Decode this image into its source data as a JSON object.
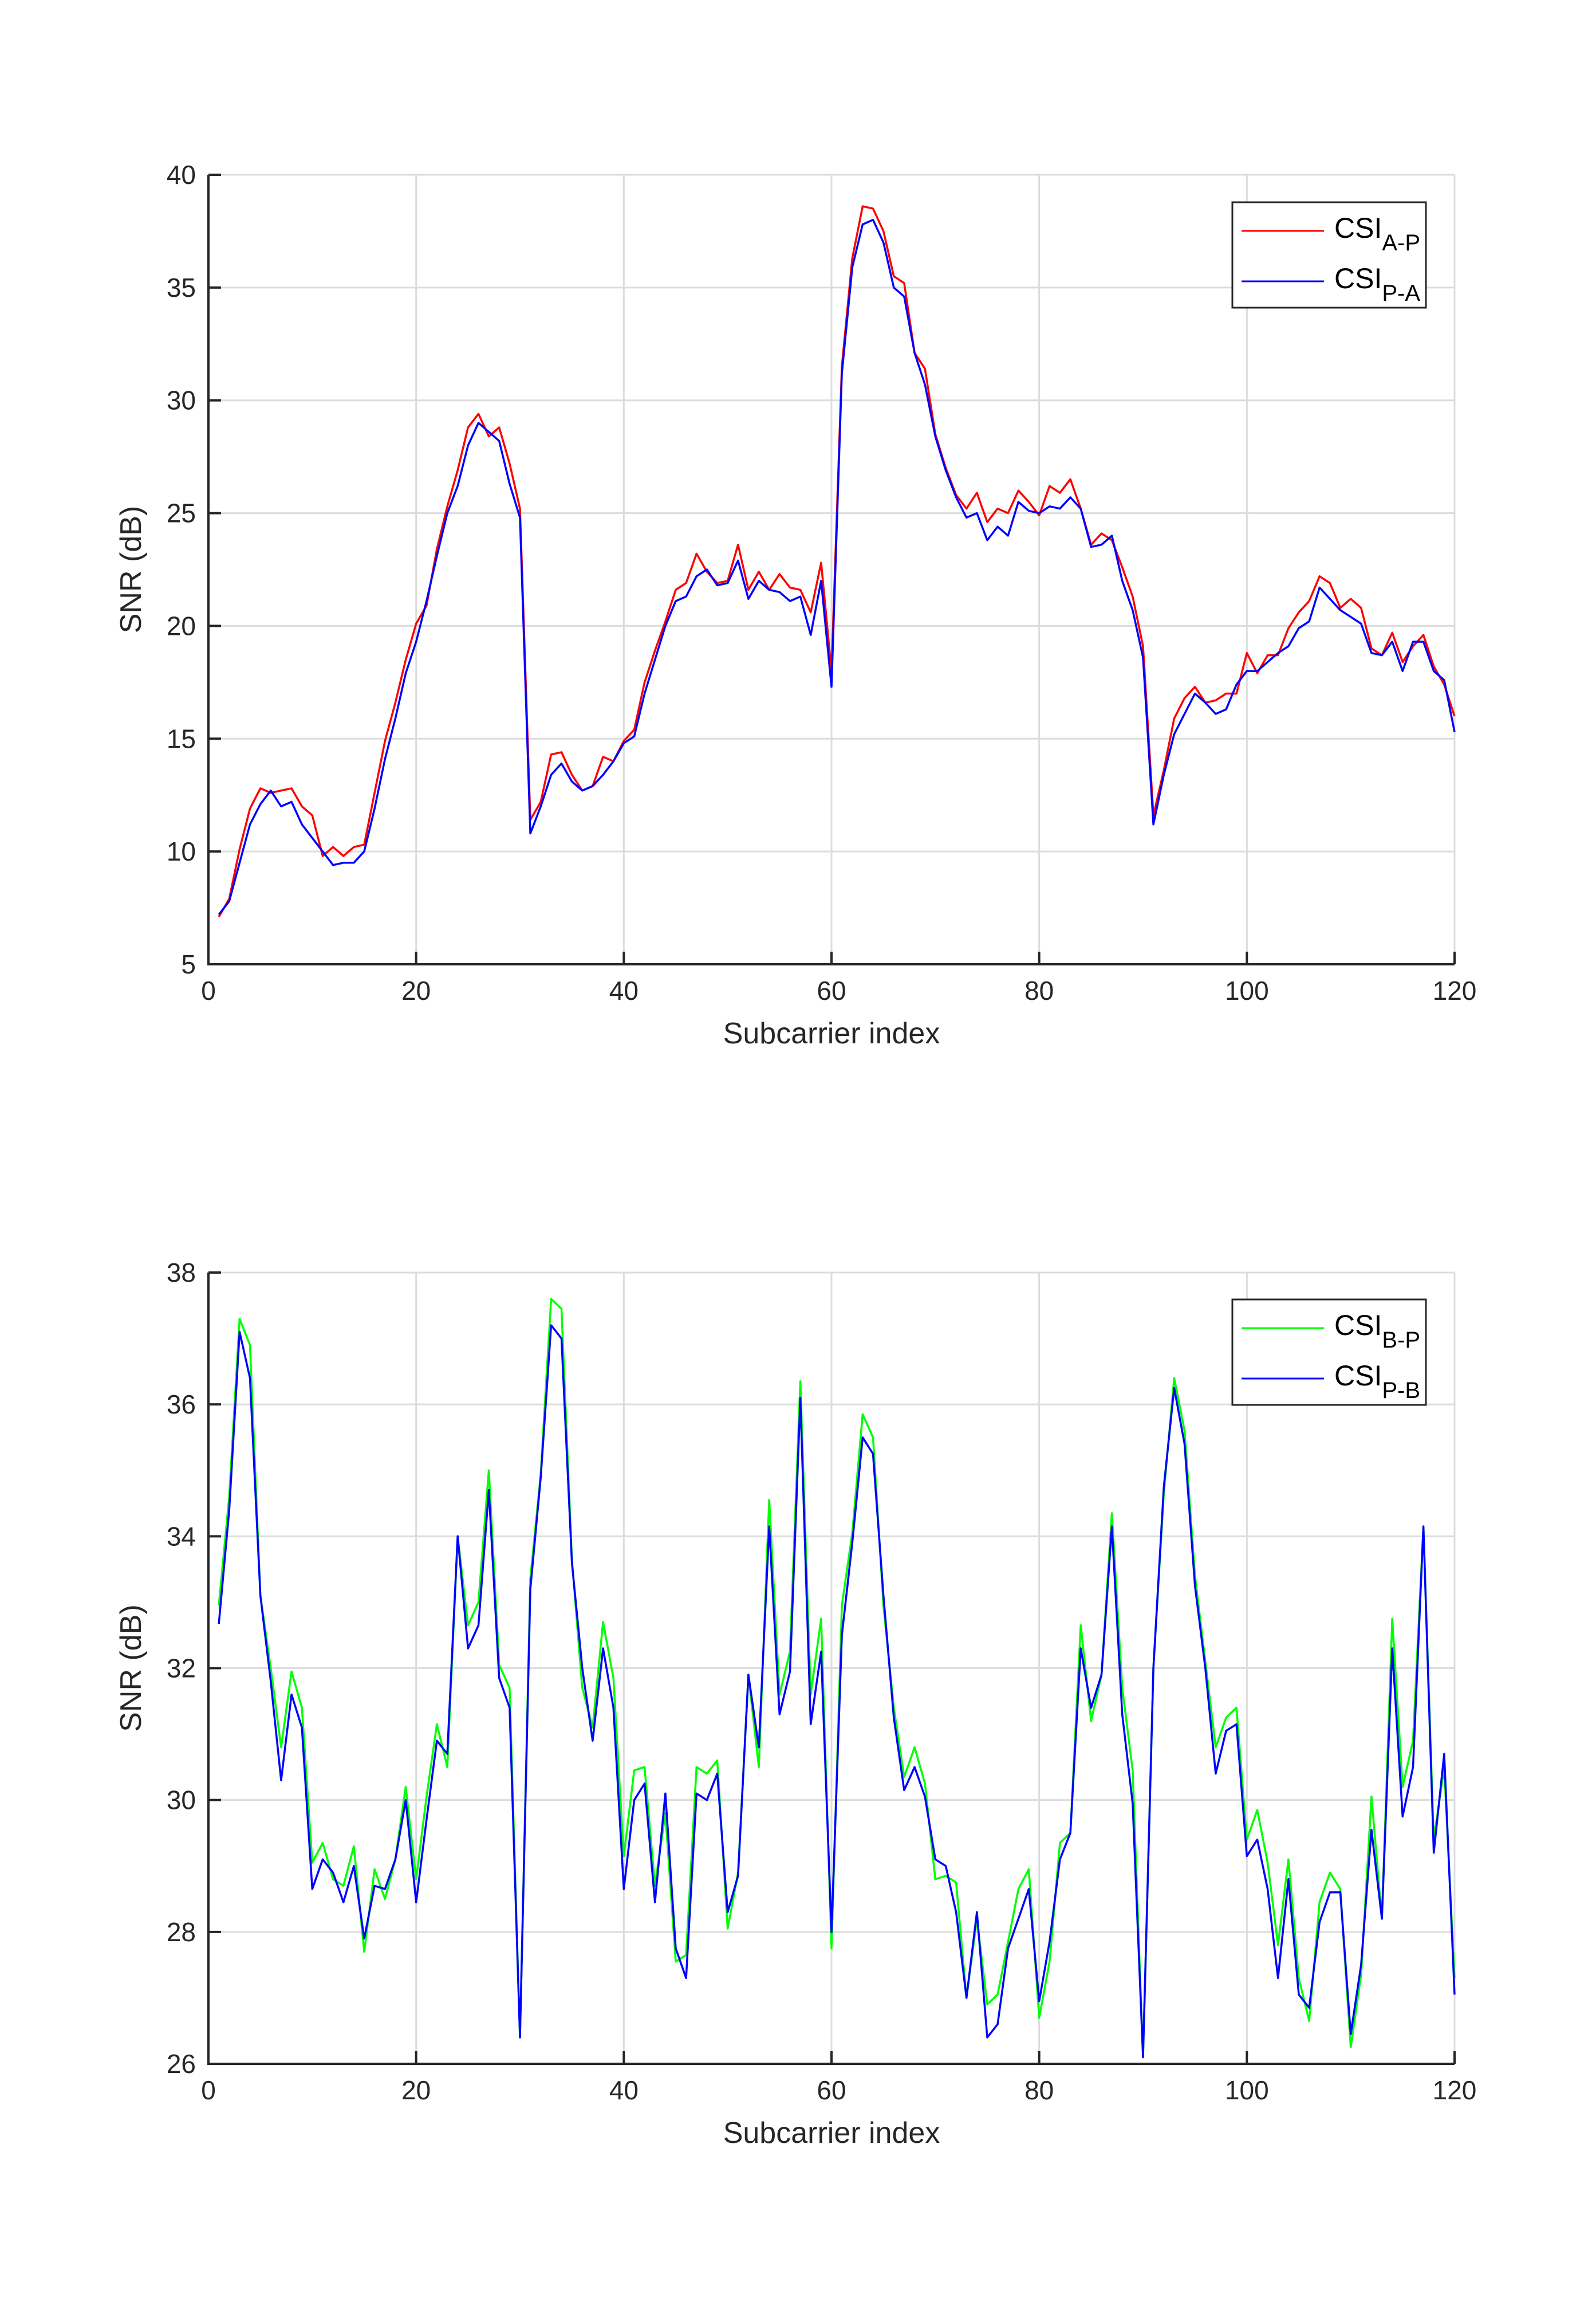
{
  "chart_data": [
    {
      "type": "line",
      "xlabel": "Subcarrier index",
      "ylabel": "SNR (dB)",
      "xlim": [
        0,
        120
      ],
      "ylim": [
        5,
        40
      ],
      "xticks": [
        0,
        20,
        40,
        60,
        80,
        100,
        120
      ],
      "yticks": [
        5,
        10,
        15,
        20,
        25,
        30,
        35,
        40
      ],
      "grid": true,
      "legend_position": "top-right",
      "x_start": 1,
      "series": [
        {
          "name": "CSI_A-P",
          "label_base": "CSI",
          "label_sub": "A-P",
          "color": "#ff0000",
          "values": [
            7.1,
            7.9,
            10.1,
            11.9,
            12.8,
            12.6,
            12.7,
            12.8,
            12.0,
            11.6,
            9.8,
            10.2,
            9.8,
            10.2,
            10.3,
            12.6,
            14.9,
            16.6,
            18.5,
            20.1,
            20.9,
            23.4,
            25.3,
            26.9,
            28.8,
            29.4,
            28.4,
            28.8,
            27.2,
            25.2,
            11.4,
            12.2,
            14.3,
            14.4,
            13.4,
            12.7,
            12.9,
            14.2,
            14.0,
            14.9,
            15.4,
            17.5,
            18.9,
            20.2,
            21.6,
            21.9,
            23.2,
            22.4,
            21.9,
            22.0,
            23.6,
            21.6,
            22.4,
            21.6,
            22.3,
            21.7,
            21.6,
            20.6,
            22.8,
            18.0,
            31.5,
            36.3,
            38.6,
            38.5,
            37.5,
            35.5,
            35.2,
            32.1,
            31.4,
            28.5,
            27.0,
            25.8,
            25.2,
            25.9,
            24.6,
            25.2,
            25.0,
            26.0,
            25.5,
            24.9,
            26.2,
            25.9,
            26.5,
            25.2,
            23.6,
            24.1,
            23.8,
            22.6,
            21.3,
            19.1,
            11.6,
            13.6,
            15.9,
            16.8,
            17.3,
            16.6,
            16.7,
            17.0,
            17.0,
            18.8,
            17.9,
            18.7,
            18.7,
            19.9,
            20.6,
            21.1,
            22.2,
            21.9,
            20.8,
            21.2,
            20.8,
            19.0,
            18.7,
            19.7,
            18.4,
            19.1,
            19.6,
            18.2,
            17.4,
            16.0
          ]
        },
        {
          "name": "CSI_P-A",
          "label_base": "CSI",
          "label_sub": "P-A",
          "color": "#0000ff",
          "values": [
            7.2,
            7.8,
            9.5,
            11.2,
            12.1,
            12.7,
            12.0,
            12.2,
            11.2,
            10.6,
            10.0,
            9.4,
            9.5,
            9.5,
            10.0,
            11.9,
            14.1,
            15.9,
            17.9,
            19.3,
            21.1,
            23.1,
            25.0,
            26.2,
            28.0,
            29.0,
            28.6,
            28.2,
            26.3,
            24.8,
            10.8,
            12.0,
            13.4,
            13.9,
            13.1,
            12.7,
            12.9,
            13.4,
            14.0,
            14.8,
            15.1,
            17.0,
            18.5,
            20.0,
            21.1,
            21.3,
            22.2,
            22.5,
            21.8,
            21.9,
            22.9,
            21.2,
            22.0,
            21.6,
            21.5,
            21.1,
            21.3,
            19.6,
            22.0,
            17.3,
            31.2,
            35.9,
            37.8,
            38.0,
            37.0,
            35.0,
            34.6,
            32.1,
            30.7,
            28.4,
            26.9,
            25.7,
            24.8,
            25.0,
            23.8,
            24.4,
            24.0,
            25.5,
            25.1,
            25.0,
            25.3,
            25.2,
            25.7,
            25.2,
            23.5,
            23.6,
            24.0,
            22.0,
            20.7,
            18.6,
            11.2,
            13.4,
            15.2,
            16.1,
            17.0,
            16.6,
            16.1,
            16.3,
            17.4,
            18.0,
            18.0,
            18.4,
            18.8,
            19.1,
            19.9,
            20.2,
            21.7,
            21.2,
            20.7,
            20.4,
            20.1,
            18.8,
            18.7,
            19.3,
            18.0,
            19.3,
            19.3,
            18.0,
            17.6,
            15.3
          ]
        }
      ]
    },
    {
      "type": "line",
      "xlabel": "Subcarrier index",
      "ylabel": "SNR (dB)",
      "xlim": [
        0,
        120
      ],
      "ylim": [
        26,
        38
      ],
      "xticks": [
        0,
        20,
        40,
        60,
        80,
        100,
        120
      ],
      "yticks": [
        26,
        28,
        30,
        32,
        34,
        36,
        38
      ],
      "grid": true,
      "legend_position": "top-right",
      "x_start": 1,
      "series": [
        {
          "name": "CSI_B-P",
          "label_base": "CSI",
          "label_sub": "B-P",
          "color": "#00ff00",
          "values": [
            32.95,
            34.6,
            37.3,
            36.9,
            33.1,
            32.0,
            30.8,
            31.95,
            31.4,
            29.05,
            29.35,
            28.8,
            28.7,
            29.3,
            27.7,
            28.95,
            28.5,
            29.1,
            30.2,
            28.8,
            30.05,
            31.15,
            30.5,
            34.0,
            32.65,
            33.0,
            35.0,
            32.05,
            31.7,
            26.4,
            33.35,
            34.95,
            37.6,
            37.45,
            33.65,
            31.7,
            31.1,
            32.7,
            31.85,
            29.15,
            30.45,
            30.5,
            28.7,
            29.8,
            27.55,
            27.65,
            30.5,
            30.4,
            30.6,
            28.05,
            28.9,
            31.9,
            30.5,
            34.55,
            31.6,
            32.25,
            36.35,
            31.6,
            32.75,
            27.75,
            32.95,
            34.05,
            35.85,
            35.5,
            32.95,
            31.4,
            30.35,
            30.8,
            30.25,
            28.8,
            28.85,
            28.75,
            27.0,
            28.2,
            26.9,
            27.05,
            27.85,
            28.65,
            28.95,
            26.7,
            27.55,
            29.35,
            29.5,
            32.65,
            31.2,
            31.9,
            34.35,
            31.7,
            30.45,
            26.1,
            32.0,
            34.65,
            36.4,
            35.6,
            33.4,
            32.1,
            30.8,
            31.25,
            31.4,
            29.4,
            29.85,
            29.05,
            27.8,
            29.1,
            27.3,
            26.65,
            28.45,
            28.9,
            28.65,
            26.25,
            27.35,
            30.05,
            28.2,
            32.75,
            30.2,
            30.9,
            34.15,
            29.4,
            30.5,
            27.3
          ]
        },
        {
          "name": "CSI_P-B",
          "label_base": "CSI",
          "label_sub": "P-B",
          "color": "#0000ff",
          "values": [
            32.67,
            34.4,
            37.1,
            36.4,
            33.1,
            31.8,
            30.3,
            31.6,
            31.1,
            28.65,
            29.1,
            28.9,
            28.45,
            29.0,
            27.9,
            28.7,
            28.65,
            29.1,
            30.0,
            28.45,
            29.7,
            30.9,
            30.7,
            34.0,
            32.3,
            32.65,
            34.7,
            31.85,
            31.4,
            26.4,
            33.2,
            34.9,
            37.2,
            37.0,
            33.6,
            32.0,
            30.9,
            32.3,
            31.4,
            28.65,
            30.0,
            30.25,
            28.45,
            30.1,
            27.75,
            27.3,
            30.1,
            30.0,
            30.4,
            28.3,
            28.85,
            31.9,
            30.8,
            34.15,
            31.3,
            31.95,
            36.1,
            31.15,
            32.25,
            28.0,
            32.5,
            33.9,
            35.5,
            35.25,
            33.1,
            31.25,
            30.15,
            30.5,
            30.05,
            29.1,
            29.0,
            28.3,
            27.0,
            28.3,
            26.4,
            26.6,
            27.75,
            28.2,
            28.65,
            26.95,
            27.85,
            29.1,
            29.5,
            32.3,
            31.4,
            31.9,
            34.15,
            31.3,
            29.95,
            26.1,
            32.0,
            34.75,
            36.25,
            35.4,
            33.25,
            32.0,
            30.4,
            31.05,
            31.15,
            29.15,
            29.4,
            28.65,
            27.3,
            28.8,
            27.05,
            26.85,
            28.15,
            28.6,
            28.6,
            26.45,
            27.5,
            29.55,
            28.2,
            32.3,
            29.75,
            30.5,
            34.15,
            29.2,
            30.7,
            27.05
          ]
        }
      ]
    }
  ]
}
